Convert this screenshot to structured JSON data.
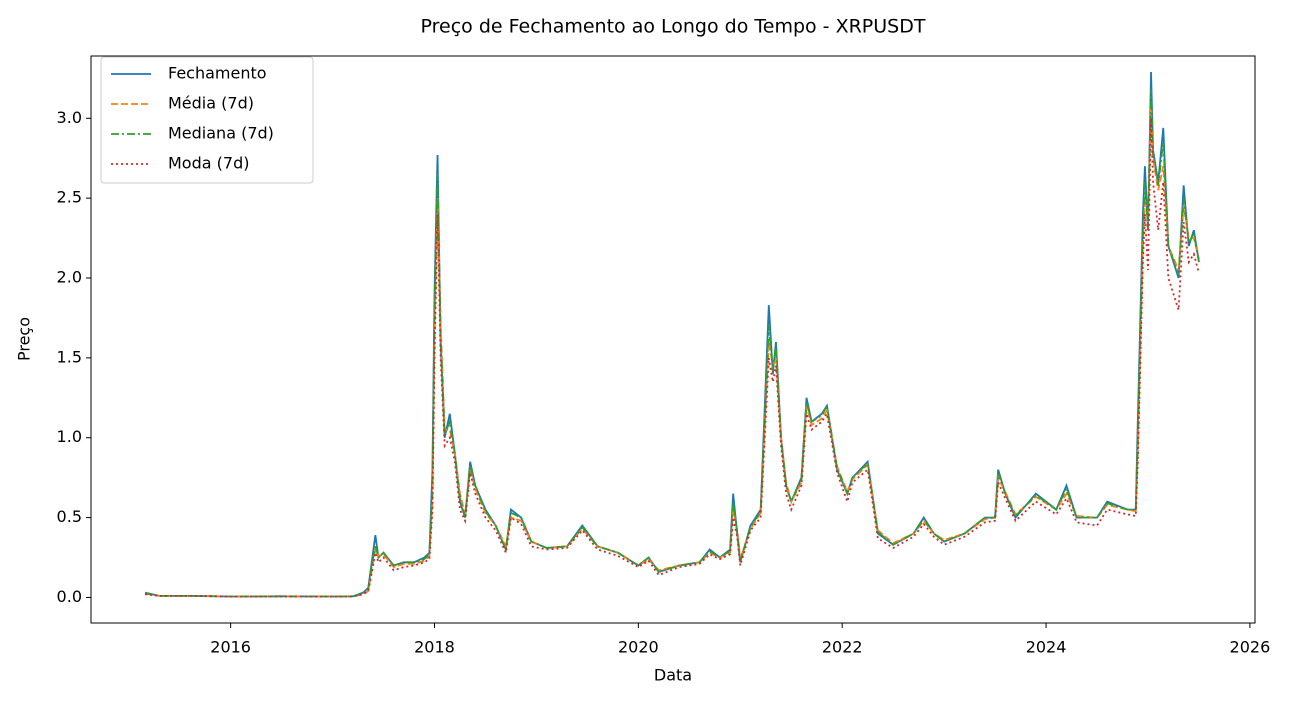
{
  "chart_data": {
    "type": "line",
    "title": "Preço de Fechamento ao Longo do Tempo - XRPUSDT",
    "xlabel": "Data",
    "ylabel": "Preço",
    "x": [
      2015.16,
      2015.3,
      2015.6,
      2016.0,
      2016.5,
      2017.0,
      2017.2,
      2017.3,
      2017.35,
      2017.38,
      2017.42,
      2017.45,
      2017.5,
      2017.6,
      2017.7,
      2017.8,
      2017.9,
      2017.95,
      2017.98,
      2018.0,
      2018.02,
      2018.03,
      2018.06,
      2018.1,
      2018.15,
      2018.2,
      2018.25,
      2018.3,
      2018.35,
      2018.4,
      2018.5,
      2018.6,
      2018.7,
      2018.75,
      2018.85,
      2018.95,
      2019.1,
      2019.3,
      2019.45,
      2019.6,
      2019.8,
      2020.0,
      2020.1,
      2020.2,
      2020.4,
      2020.6,
      2020.7,
      2020.8,
      2020.9,
      2020.93,
      2020.97,
      2021.0,
      2021.1,
      2021.2,
      2021.28,
      2021.32,
      2021.35,
      2021.4,
      2021.45,
      2021.5,
      2021.6,
      2021.65,
      2021.7,
      2021.8,
      2021.85,
      2021.95,
      2022.05,
      2022.1,
      2022.25,
      2022.35,
      2022.5,
      2022.7,
      2022.8,
      2022.9,
      2023.0,
      2023.2,
      2023.4,
      2023.5,
      2023.53,
      2023.6,
      2023.7,
      2023.9,
      2024.1,
      2024.2,
      2024.3,
      2024.5,
      2024.6,
      2024.8,
      2024.88,
      2024.9,
      2024.95,
      2024.97,
      2025.0,
      2025.03,
      2025.05,
      2025.1,
      2025.15,
      2025.2,
      2025.3,
      2025.35,
      2025.4,
      2025.45,
      2025.5
    ],
    "series": [
      {
        "name": "Fechamento",
        "color": "#1f77b4",
        "linestyle": "solid",
        "values": [
          0.03,
          0.01,
          0.01,
          0.006,
          0.007,
          0.006,
          0.007,
          0.03,
          0.06,
          0.2,
          0.39,
          0.25,
          0.28,
          0.2,
          0.22,
          0.22,
          0.25,
          0.28,
          0.8,
          1.9,
          2.5,
          2.77,
          1.6,
          1.0,
          1.15,
          0.9,
          0.6,
          0.5,
          0.85,
          0.7,
          0.55,
          0.45,
          0.3,
          0.55,
          0.5,
          0.35,
          0.31,
          0.32,
          0.45,
          0.32,
          0.28,
          0.2,
          0.25,
          0.16,
          0.2,
          0.22,
          0.3,
          0.25,
          0.3,
          0.65,
          0.4,
          0.22,
          0.45,
          0.55,
          1.83,
          1.4,
          1.6,
          1.0,
          0.7,
          0.6,
          0.75,
          1.25,
          1.1,
          1.15,
          1.2,
          0.8,
          0.65,
          0.75,
          0.85,
          0.4,
          0.33,
          0.4,
          0.5,
          0.4,
          0.35,
          0.4,
          0.5,
          0.5,
          0.8,
          0.65,
          0.5,
          0.65,
          0.55,
          0.7,
          0.5,
          0.5,
          0.6,
          0.55,
          0.55,
          1.1,
          2.4,
          2.7,
          2.3,
          3.29,
          2.8,
          2.6,
          2.94,
          2.2,
          2.0,
          2.58,
          2.2,
          2.3,
          2.1
        ]
      },
      {
        "name": "Média (7d)",
        "color": "#ff7f0e",
        "linestyle": "dashed",
        "values": [
          0.025,
          0.01,
          0.01,
          0.006,
          0.007,
          0.006,
          0.007,
          0.02,
          0.04,
          0.15,
          0.3,
          0.26,
          0.27,
          0.19,
          0.21,
          0.21,
          0.23,
          0.26,
          0.6,
          1.6,
          2.2,
          2.5,
          1.7,
          1.05,
          1.05,
          0.9,
          0.65,
          0.52,
          0.8,
          0.68,
          0.53,
          0.45,
          0.32,
          0.5,
          0.48,
          0.35,
          0.31,
          0.32,
          0.43,
          0.32,
          0.28,
          0.2,
          0.24,
          0.17,
          0.2,
          0.22,
          0.28,
          0.25,
          0.28,
          0.55,
          0.42,
          0.24,
          0.43,
          0.53,
          1.6,
          1.45,
          1.5,
          1.0,
          0.72,
          0.6,
          0.72,
          1.2,
          1.08,
          1.12,
          1.17,
          0.82,
          0.66,
          0.74,
          0.83,
          0.42,
          0.34,
          0.4,
          0.48,
          0.4,
          0.36,
          0.4,
          0.49,
          0.5,
          0.75,
          0.66,
          0.52,
          0.63,
          0.55,
          0.65,
          0.51,
          0.5,
          0.58,
          0.55,
          0.54,
          0.9,
          2.2,
          2.5,
          2.35,
          3.1,
          2.75,
          2.55,
          2.7,
          2.2,
          2.05,
          2.45,
          2.25,
          2.25,
          2.12
        ]
      },
      {
        "name": "Mediana (7d)",
        "color": "#2ca02c",
        "linestyle": "dashdot",
        "values": [
          0.025,
          0.01,
          0.01,
          0.006,
          0.007,
          0.006,
          0.007,
          0.025,
          0.05,
          0.18,
          0.33,
          0.25,
          0.28,
          0.2,
          0.22,
          0.22,
          0.24,
          0.27,
          0.7,
          1.8,
          2.4,
          2.65,
          1.65,
          1.02,
          1.1,
          0.9,
          0.62,
          0.5,
          0.83,
          0.7,
          0.54,
          0.45,
          0.3,
          0.53,
          0.5,
          0.35,
          0.31,
          0.32,
          0.44,
          0.32,
          0.28,
          0.2,
          0.25,
          0.16,
          0.2,
          0.22,
          0.29,
          0.25,
          0.29,
          0.6,
          0.41,
          0.23,
          0.44,
          0.54,
          1.7,
          1.42,
          1.58,
          1.0,
          0.7,
          0.6,
          0.74,
          1.22,
          1.1,
          1.14,
          1.2,
          0.81,
          0.65,
          0.75,
          0.84,
          0.41,
          0.33,
          0.4,
          0.49,
          0.4,
          0.35,
          0.4,
          0.5,
          0.5,
          0.78,
          0.65,
          0.51,
          0.64,
          0.55,
          0.68,
          0.5,
          0.5,
          0.59,
          0.55,
          0.55,
          1.0,
          2.3,
          2.6,
          2.3,
          3.18,
          2.78,
          2.58,
          2.85,
          2.2,
          2.02,
          2.5,
          2.22,
          2.28,
          2.1
        ]
      },
      {
        "name": "Moda (7d)",
        "color": "#d62728",
        "linestyle": "dotted",
        "values": [
          0.02,
          0.01,
          0.01,
          0.005,
          0.006,
          0.005,
          0.006,
          0.02,
          0.04,
          0.14,
          0.28,
          0.22,
          0.25,
          0.17,
          0.19,
          0.2,
          0.22,
          0.24,
          0.55,
          1.5,
          2.1,
          2.4,
          1.5,
          0.95,
          1.0,
          0.85,
          0.55,
          0.48,
          0.78,
          0.65,
          0.5,
          0.42,
          0.28,
          0.5,
          0.46,
          0.32,
          0.3,
          0.31,
          0.42,
          0.3,
          0.26,
          0.19,
          0.23,
          0.14,
          0.19,
          0.21,
          0.27,
          0.24,
          0.27,
          0.5,
          0.38,
          0.2,
          0.42,
          0.5,
          1.5,
          1.35,
          1.45,
          0.95,
          0.65,
          0.55,
          0.7,
          1.15,
          1.05,
          1.1,
          1.15,
          0.78,
          0.6,
          0.72,
          0.8,
          0.37,
          0.31,
          0.38,
          0.46,
          0.38,
          0.33,
          0.38,
          0.47,
          0.48,
          0.72,
          0.62,
          0.48,
          0.6,
          0.52,
          0.62,
          0.47,
          0.45,
          0.55,
          0.52,
          0.51,
          0.85,
          2.1,
          2.4,
          2.05,
          3.0,
          2.6,
          2.3,
          2.6,
          2.0,
          1.8,
          2.35,
          2.1,
          2.15,
          2.03
        ]
      }
    ],
    "xlim": [
      2014.63,
      2026.05
    ],
    "xticks": [
      2016,
      2018,
      2020,
      2022,
      2024,
      2026
    ],
    "ylim": [
      -0.16,
      3.39
    ],
    "yticks": [
      {
        "value": 0,
        "label": "0.0"
      },
      0.5,
      {
        "value": 1,
        "label": "1.0"
      },
      1.5,
      {
        "value": 2,
        "label": "2.0"
      },
      2.5,
      {
        "value": 3,
        "label": "3.0"
      }
    ],
    "grid": false,
    "legend": "upper left"
  }
}
